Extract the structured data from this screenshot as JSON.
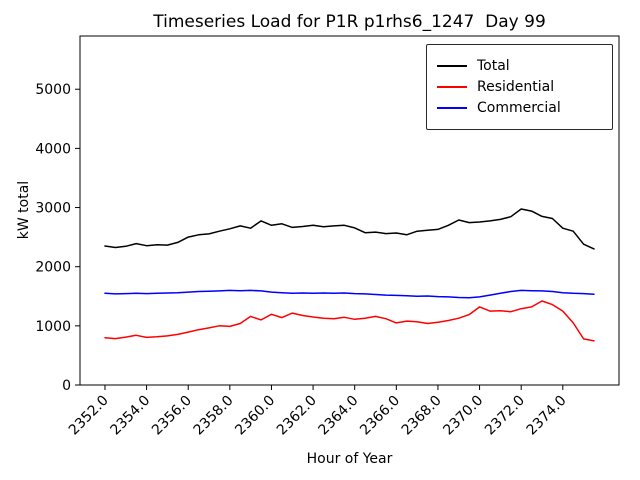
{
  "chart_data": {
    "type": "line",
    "title": "Timeseries Load for P1R p1rhs6_1247  Day 99",
    "xlabel": "Hour of Year",
    "ylabel": "kW total",
    "grid": false,
    "legend_position": "upper right",
    "xlim": [
      2350.8,
      2376.7
    ],
    "ylim": [
      0,
      5900
    ],
    "x_ticks": [
      2352,
      2354,
      2356,
      2358,
      2360,
      2362,
      2364,
      2366,
      2368,
      2370,
      2372,
      2374
    ],
    "x_tick_labels": [
      "2352.0",
      "2354.0",
      "2356.0",
      "2358.0",
      "2360.0",
      "2362.0",
      "2364.0",
      "2366.0",
      "2368.0",
      "2370.0",
      "2372.0",
      "2374.0"
    ],
    "y_ticks": [
      0,
      1000,
      2000,
      3000,
      4000,
      5000
    ],
    "y_tick_labels": [
      "0",
      "1000",
      "2000",
      "3000",
      "4000",
      "5000"
    ],
    "x": [
      2352.0,
      2352.5,
      2353.0,
      2353.5,
      2354.0,
      2354.5,
      2355.0,
      2355.5,
      2356.0,
      2356.5,
      2357.0,
      2357.5,
      2358.0,
      2358.5,
      2359.0,
      2359.5,
      2360.0,
      2360.5,
      2361.0,
      2361.5,
      2362.0,
      2362.5,
      2363.0,
      2363.5,
      2364.0,
      2364.5,
      2365.0,
      2365.5,
      2366.0,
      2366.5,
      2367.0,
      2367.5,
      2368.0,
      2368.5,
      2369.0,
      2369.5,
      2370.0,
      2370.5,
      2371.0,
      2371.5,
      2372.0,
      2372.5,
      2373.0,
      2373.5,
      2374.0,
      2374.5,
      2375.0,
      2375.5
    ],
    "series": [
      {
        "name": "Total",
        "color": "#000000",
        "values": [
          2350,
          2325,
          2345,
          2390,
          2355,
          2370,
          2365,
          2410,
          2500,
          2540,
          2555,
          2600,
          2640,
          2690,
          2650,
          2775,
          2700,
          2725,
          2665,
          2680,
          2700,
          2675,
          2690,
          2700,
          2655,
          2575,
          2585,
          2560,
          2570,
          2540,
          2600,
          2615,
          2630,
          2700,
          2790,
          2745,
          2755,
          2775,
          2800,
          2845,
          2975,
          2940,
          2850,
          2815,
          2650,
          2600,
          2380,
          2300
        ]
      },
      {
        "name": "Residential",
        "color": "#ff0000",
        "values": [
          800,
          785,
          810,
          840,
          805,
          815,
          830,
          855,
          895,
          935,
          965,
          1000,
          990,
          1040,
          1160,
          1100,
          1195,
          1140,
          1215,
          1175,
          1150,
          1130,
          1120,
          1145,
          1110,
          1130,
          1160,
          1120,
          1050,
          1080,
          1070,
          1040,
          1060,
          1090,
          1130,
          1190,
          1320,
          1250,
          1255,
          1240,
          1290,
          1320,
          1420,
          1360,
          1250,
          1050,
          780,
          745
        ]
      },
      {
        "name": "Commercial",
        "color": "#0000ff",
        "values": [
          1550,
          1540,
          1545,
          1550,
          1545,
          1550,
          1555,
          1560,
          1570,
          1580,
          1585,
          1590,
          1600,
          1595,
          1600,
          1590,
          1570,
          1560,
          1550,
          1555,
          1550,
          1555,
          1550,
          1555,
          1545,
          1540,
          1530,
          1520,
          1515,
          1510,
          1500,
          1505,
          1495,
          1490,
          1480,
          1475,
          1490,
          1520,
          1550,
          1580,
          1600,
          1595,
          1590,
          1580,
          1560,
          1550,
          1545,
          1535
        ]
      }
    ]
  }
}
